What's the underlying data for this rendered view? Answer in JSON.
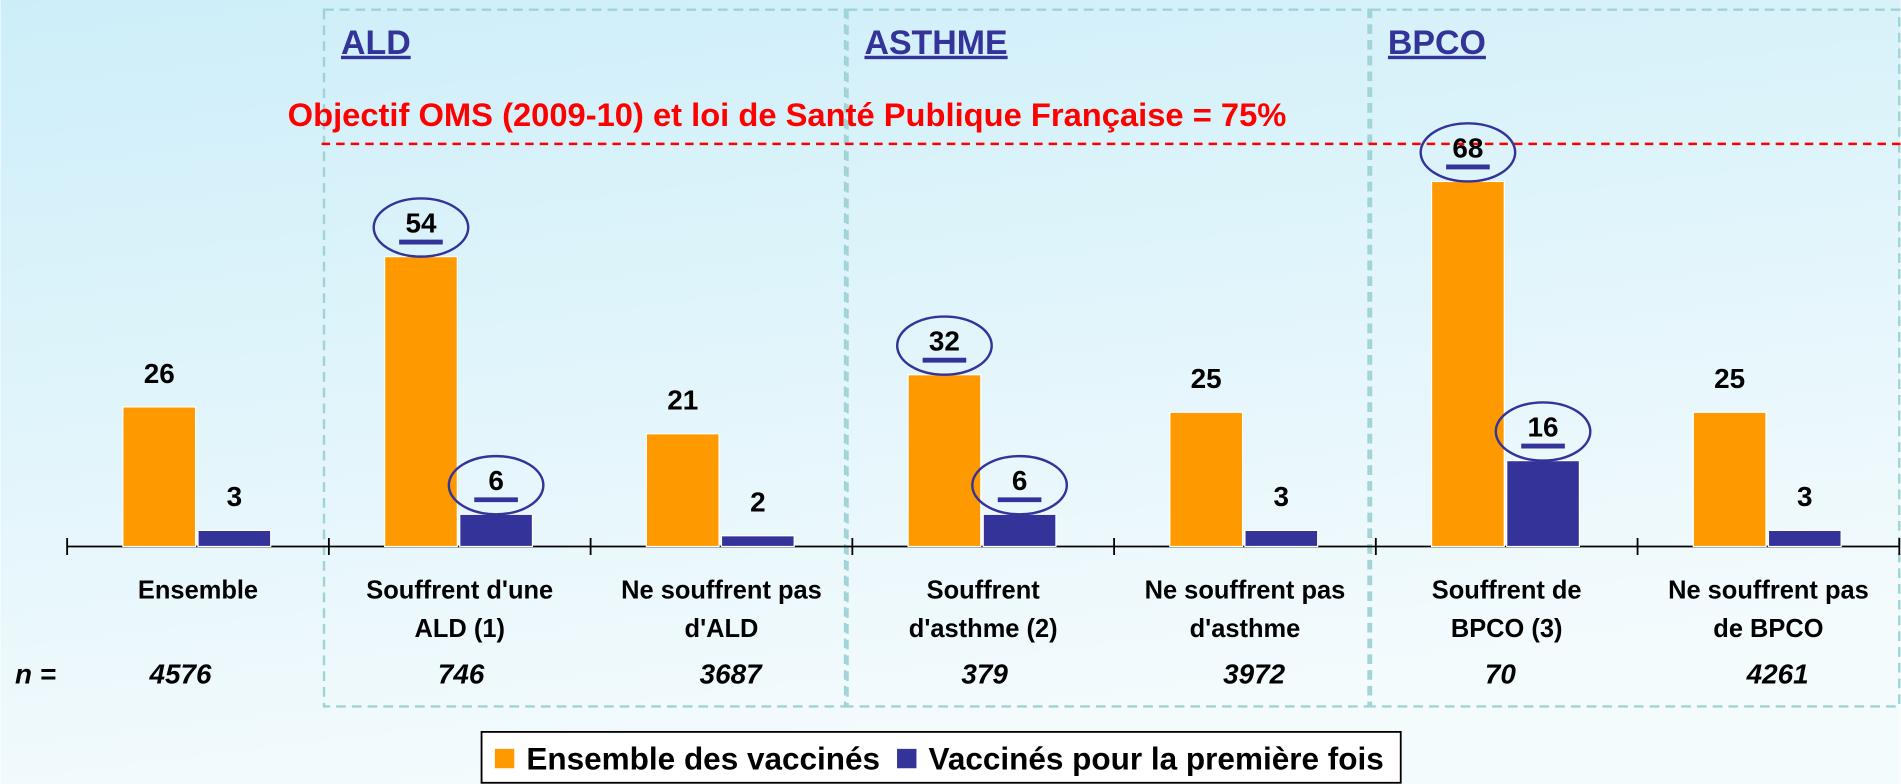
{
  "chart_data": {
    "type": "bar",
    "categories": [
      "Ensemble",
      "Souffrent d'une\nALD (1)",
      "Ne souffrent pas\nd'ALD",
      "Souffrent\nd'asthme (2)",
      "Ne souffrent pas\nd'asthme",
      "Souffrent de\nBPCO (3)",
      "Ne souffrent pas\nde BPCO"
    ],
    "series": [
      {
        "name": "Ensemble des vaccinés",
        "color": "#ff9900",
        "values": [
          26,
          54,
          21,
          32,
          25,
          68,
          25
        ]
      },
      {
        "name": "Vaccinés pour la première fois",
        "color": "#333399",
        "values": [
          3,
          6,
          2,
          6,
          3,
          16,
          3
        ]
      }
    ],
    "highlighted_categories": [
      1,
      3,
      5
    ],
    "groups": [
      {
        "label": "ALD",
        "start": 1,
        "end": 2
      },
      {
        "label": "ASTHME",
        "start": 3,
        "end": 4
      },
      {
        "label": "BPCO",
        "start": 5,
        "end": 6
      }
    ],
    "reference_line": {
      "value": 75,
      "label": "Objectif OMS (2009-10) et loi de Santé Publique Française = 75%",
      "color": "#ff0000"
    },
    "n_label": "n =",
    "n": [
      "4576",
      "746",
      "3687",
      "379",
      "3972",
      "70",
      "4261"
    ],
    "ylim": [
      0,
      100
    ],
    "legend": "bottom"
  }
}
